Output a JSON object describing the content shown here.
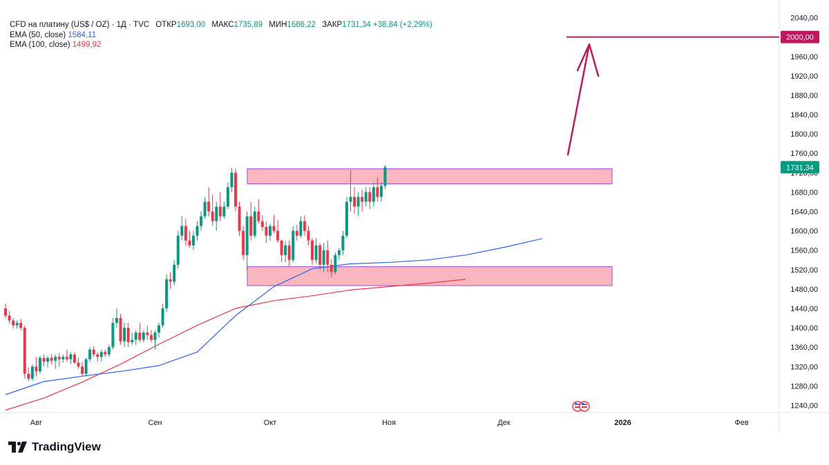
{
  "legend": {
    "title": "CFD на платину (US$ / OZ) · 1Д · TVC",
    "open_label": "ОТКР",
    "open": "1693,00",
    "high_label": "МАКС",
    "high": "1735,89",
    "low_label": "МИН",
    "low": "1686,22",
    "close_label": "ЗАКР",
    "close": "1731,34",
    "change": "+38,84 (+2,29%)",
    "ema50_label": "EMA (50, close)",
    "ema50_value": "1584,11",
    "ema100_label": "EMA (100, close)",
    "ema100_value": "1499,92"
  },
  "brand": {
    "logo_text": "TradingView"
  },
  "colors": {
    "up": "#089981",
    "down": "#f23645",
    "ema50": "#2962ff",
    "ema100": "#f23645",
    "zone": "#f7a1ad",
    "target": "#c2185b"
  },
  "chart_data": {
    "type": "candlestick",
    "ylim": [
      1225,
      2065
    ],
    "y_ticks": [
      "1240,00",
      "1280,00",
      "1320,00",
      "1360,00",
      "1400,00",
      "1440,00",
      "1480,00",
      "1520,00",
      "1560,00",
      "1600,00",
      "1640,00",
      "1680,00",
      "1720,00",
      "1760,00",
      "1800,00",
      "1840,00",
      "1880,00",
      "1920,00",
      "1960,00",
      "2000,00",
      "2040,00"
    ],
    "x_ticks": [
      {
        "label": "Авг",
        "day": 8,
        "bold": false
      },
      {
        "label": "Сен",
        "day": 39,
        "bold": false
      },
      {
        "label": "Окт",
        "day": 69,
        "bold": false
      },
      {
        "label": "Ноя",
        "day": 100,
        "bold": false
      },
      {
        "label": "Дек",
        "day": 130,
        "bold": false
      },
      {
        "label": "2026",
        "day": 161,
        "bold": true
      },
      {
        "label": "Фев",
        "day": 192,
        "bold": false
      }
    ],
    "candles": [
      [
        1440,
        1450,
        1420,
        1425
      ],
      [
        1425,
        1435,
        1408,
        1415
      ],
      [
        1415,
        1420,
        1398,
        1405
      ],
      [
        1405,
        1415,
        1398,
        1410
      ],
      [
        1410,
        1418,
        1395,
        1400
      ],
      [
        1400,
        1405,
        1295,
        1305
      ],
      [
        1305,
        1318,
        1290,
        1295
      ],
      [
        1295,
        1325,
        1290,
        1320
      ],
      [
        1320,
        1340,
        1300,
        1310
      ],
      [
        1310,
        1342,
        1305,
        1338
      ],
      [
        1338,
        1345,
        1320,
        1330
      ],
      [
        1330,
        1342,
        1318,
        1338
      ],
      [
        1338,
        1345,
        1325,
        1332
      ],
      [
        1332,
        1345,
        1315,
        1340
      ],
      [
        1340,
        1348,
        1320,
        1335
      ],
      [
        1335,
        1345,
        1328,
        1340
      ],
      [
        1340,
        1355,
        1330,
        1335
      ],
      [
        1335,
        1350,
        1325,
        1345
      ],
      [
        1345,
        1350,
        1325,
        1328
      ],
      [
        1328,
        1338,
        1315,
        1320
      ],
      [
        1320,
        1330,
        1300,
        1305
      ],
      [
        1305,
        1338,
        1300,
        1335
      ],
      [
        1335,
        1360,
        1330,
        1355
      ],
      [
        1355,
        1362,
        1340,
        1345
      ],
      [
        1345,
        1350,
        1330,
        1340
      ],
      [
        1340,
        1355,
        1330,
        1350
      ],
      [
        1350,
        1355,
        1340,
        1345
      ],
      [
        1345,
        1365,
        1340,
        1360
      ],
      [
        1360,
        1420,
        1355,
        1410
      ],
      [
        1410,
        1440,
        1400,
        1420
      ],
      [
        1420,
        1428,
        1365,
        1372
      ],
      [
        1372,
        1410,
        1360,
        1400
      ],
      [
        1400,
        1410,
        1360,
        1370
      ],
      [
        1370,
        1390,
        1365,
        1375
      ],
      [
        1375,
        1395,
        1365,
        1390
      ],
      [
        1390,
        1410,
        1370,
        1375
      ],
      [
        1375,
        1395,
        1370,
        1390
      ],
      [
        1390,
        1405,
        1375,
        1385
      ],
      [
        1385,
        1395,
        1370,
        1375
      ],
      [
        1375,
        1395,
        1355,
        1390
      ],
      [
        1390,
        1410,
        1380,
        1405
      ],
      [
        1405,
        1450,
        1400,
        1440
      ],
      [
        1440,
        1510,
        1432,
        1500
      ],
      [
        1500,
        1515,
        1480,
        1495
      ],
      [
        1495,
        1540,
        1488,
        1530
      ],
      [
        1530,
        1600,
        1522,
        1590
      ],
      [
        1590,
        1630,
        1580,
        1610
      ],
      [
        1610,
        1625,
        1570,
        1580
      ],
      [
        1580,
        1600,
        1565,
        1570
      ],
      [
        1570,
        1600,
        1560,
        1590
      ],
      [
        1590,
        1620,
        1580,
        1610
      ],
      [
        1610,
        1640,
        1600,
        1630
      ],
      [
        1630,
        1670,
        1625,
        1660
      ],
      [
        1660,
        1690,
        1630,
        1640
      ],
      [
        1640,
        1675,
        1610,
        1620
      ],
      [
        1620,
        1660,
        1600,
        1650
      ],
      [
        1650,
        1680,
        1620,
        1630
      ],
      [
        1630,
        1660,
        1625,
        1650
      ],
      [
        1650,
        1700,
        1645,
        1690
      ],
      [
        1690,
        1730,
        1680,
        1720
      ],
      [
        1720,
        1728,
        1640,
        1650
      ],
      [
        1650,
        1660,
        1590,
        1600
      ],
      [
        1600,
        1610,
        1540,
        1550
      ],
      [
        1550,
        1640,
        1520,
        1630
      ],
      [
        1630,
        1660,
        1580,
        1590
      ],
      [
        1590,
        1650,
        1585,
        1640
      ],
      [
        1640,
        1665,
        1615,
        1620
      ],
      [
        1620,
        1632,
        1600,
        1608
      ],
      [
        1608,
        1620,
        1575,
        1590
      ],
      [
        1590,
        1615,
        1580,
        1610
      ],
      [
        1610,
        1632,
        1595,
        1600
      ],
      [
        1600,
        1622,
        1575,
        1580
      ],
      [
        1580,
        1582,
        1535,
        1550
      ],
      [
        1550,
        1578,
        1535,
        1570
      ],
      [
        1570,
        1580,
        1525,
        1540
      ],
      [
        1540,
        1610,
        1535,
        1600
      ],
      [
        1600,
        1612,
        1580,
        1590
      ],
      [
        1590,
        1630,
        1585,
        1620
      ],
      [
        1620,
        1632,
        1590,
        1600
      ],
      [
        1600,
        1610,
        1570,
        1580
      ],
      [
        1580,
        1585,
        1530,
        1540
      ],
      [
        1540,
        1585,
        1533,
        1570
      ],
      [
        1570,
        1575,
        1520,
        1530
      ],
      [
        1530,
        1575,
        1515,
        1560
      ],
      [
        1560,
        1580,
        1515,
        1530
      ],
      [
        1530,
        1542,
        1505,
        1515
      ],
      [
        1515,
        1555,
        1510,
        1550
      ],
      [
        1550,
        1565,
        1540,
        1560
      ],
      [
        1560,
        1600,
        1550,
        1590
      ],
      [
        1590,
        1670,
        1585,
        1660
      ],
      [
        1660,
        1725,
        1640,
        1670
      ],
      [
        1670,
        1690,
        1635,
        1650
      ],
      [
        1650,
        1680,
        1630,
        1670
      ],
      [
        1670,
        1685,
        1640,
        1660
      ],
      [
        1660,
        1690,
        1650,
        1680
      ],
      [
        1680,
        1690,
        1645,
        1660
      ],
      [
        1660,
        1700,
        1650,
        1690
      ],
      [
        1690,
        1710,
        1660,
        1670
      ],
      [
        1670,
        1700,
        1660,
        1693
      ],
      [
        1693,
        1735.89,
        1686.22,
        1731.34
      ]
    ],
    "ema50": [
      [
        0,
        1262
      ],
      [
        10,
        1289
      ],
      [
        20,
        1300
      ],
      [
        30,
        1310
      ],
      [
        40,
        1322
      ],
      [
        50,
        1350
      ],
      [
        60,
        1425
      ],
      [
        70,
        1485
      ],
      [
        80,
        1522
      ],
      [
        90,
        1532
      ],
      [
        100,
        1535
      ],
      [
        110,
        1540
      ],
      [
        120,
        1550
      ],
      [
        130,
        1566
      ],
      [
        140,
        1584.11
      ]
    ],
    "ema100": [
      [
        0,
        1230
      ],
      [
        10,
        1255
      ],
      [
        20,
        1288
      ],
      [
        30,
        1325
      ],
      [
        40,
        1366
      ],
      [
        50,
        1405
      ],
      [
        60,
        1440
      ],
      [
        70,
        1456
      ],
      [
        80,
        1466
      ],
      [
        90,
        1478
      ],
      [
        100,
        1485
      ],
      [
        110,
        1492
      ],
      [
        120,
        1499.92
      ]
    ],
    "zones": [
      {
        "y_top": 1728,
        "y_bottom": 1697
      },
      {
        "y_top": 1526,
        "y_bottom": 1487
      }
    ],
    "target": {
      "value": 2000,
      "label": "2000,00"
    },
    "last_price": {
      "value": 1731.34,
      "label": "1731,34"
    }
  }
}
